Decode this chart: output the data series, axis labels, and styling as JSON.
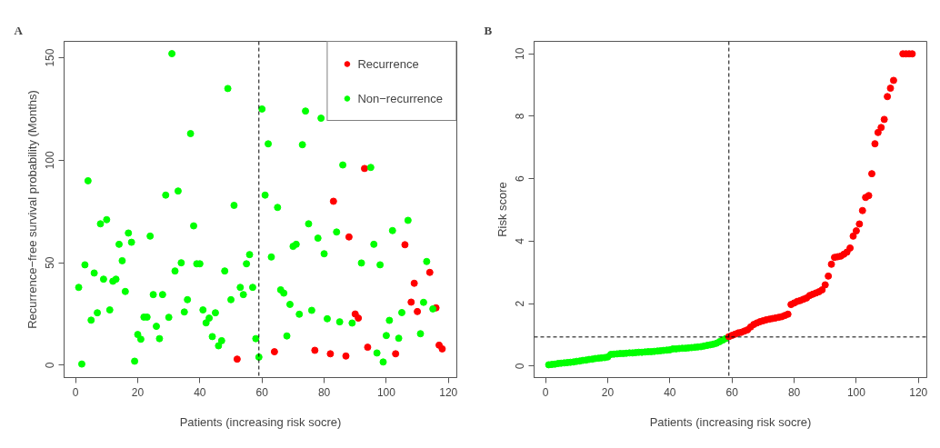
{
  "chart_data": [
    {
      "type": "scatter",
      "title": "A",
      "xlabel": "Patients (increasing risk socre)",
      "ylabel": "Recurrence−free survival probability (Months)",
      "legend": "top right",
      "marker": "circle",
      "grid": false,
      "xlim": [
        -3.7,
        122.7
      ],
      "ylim": [
        -6,
        158
      ],
      "xticks": [
        0,
        20,
        40,
        60,
        80,
        100,
        120
      ],
      "yticks": [
        0,
        50,
        100,
        150
      ],
      "ref_lines": [
        {
          "axis": "x",
          "value": 59,
          "line_style": "dashed",
          "color": "#000000"
        }
      ],
      "series": [
        {
          "name": "Recurrence",
          "color": "#ff0000",
          "x": [
            52,
            64,
            77,
            82,
            83,
            87,
            88,
            90,
            91,
            93,
            94,
            103,
            106,
            108,
            109,
            110,
            114,
            116,
            117,
            118
          ],
          "values": [
            3,
            6.6,
            7.3,
            5.6,
            80,
            4.5,
            62.6,
            25,
            23,
            96,
            8.8,
            5.6,
            58.8,
            30.8,
            40,
            26.2,
            45.3,
            28,
            9.8,
            8
          ]
        },
        {
          "name": "Non−recurrence",
          "color": "#00ff00",
          "x": [
            1,
            2,
            3,
            4,
            5,
            6,
            7,
            8,
            9,
            10,
            11,
            12,
            13,
            14,
            15,
            16,
            17,
            18,
            19,
            20,
            21,
            22,
            23,
            24,
            25,
            26,
            27,
            28,
            29,
            30,
            31,
            32,
            33,
            34,
            35,
            36,
            37,
            38,
            39,
            40,
            41,
            42,
            43,
            44,
            45,
            46,
            47,
            48,
            49,
            50,
            51,
            53,
            54,
            55,
            56,
            57,
            58,
            59,
            60,
            61,
            62,
            63,
            65,
            66,
            67,
            68,
            69,
            70,
            71,
            72,
            73,
            74,
            75,
            76,
            78,
            79,
            80,
            81,
            84,
            85,
            86,
            89,
            92,
            95,
            96,
            97,
            98,
            99,
            100,
            101,
            102,
            104,
            105,
            107,
            111,
            112,
            113,
            115
          ],
          "values": [
            38,
            0.6,
            49,
            90,
            22,
            45,
            25.6,
            69,
            42,
            71,
            27,
            41,
            42,
            59,
            51,
            36,
            64.5,
            60,
            2,
            15,
            12.7,
            23.5,
            23.5,
            63,
            34.5,
            19,
            13,
            34.5,
            83,
            23.4,
            152,
            46,
            85,
            50,
            26,
            32,
            113,
            68,
            49.5,
            49.5,
            27,
            20.7,
            23,
            14,
            25.6,
            9.5,
            12,
            46,
            135,
            32,
            78,
            38,
            34.5,
            49.5,
            54,
            38,
            13,
            4,
            125,
            83,
            108,
            52.8,
            77,
            36.8,
            35.2,
            14.3,
            29.7,
            58,
            59,
            24.9,
            107.6,
            124,
            69,
            26.8,
            62,
            120.5,
            54.4,
            22.7,
            65,
            21.2,
            97.7,
            20.6,
            49.9,
            96.5,
            59,
            6,
            49,
            1.6,
            14.5,
            21.9,
            65.7,
            13.2,
            25.7,
            70.7,
            15.4,
            30.7,
            50.6,
            27.5
          ]
        }
      ]
    },
    {
      "type": "scatter",
      "title": "B",
      "xlabel": "Patients (increasing risk socre)",
      "ylabel": "Risk score",
      "legend": false,
      "marker": "circle",
      "grid": false,
      "xlim": [
        -3.7,
        122.7
      ],
      "ylim": [
        -0.37,
        10.4
      ],
      "xticks": [
        0,
        20,
        40,
        60,
        80,
        100,
        120
      ],
      "yticks": [
        0,
        2,
        4,
        6,
        8,
        10
      ],
      "ref_lines": [
        {
          "axis": "x",
          "value": 59,
          "line_style": "dashed",
          "color": "#000000"
        },
        {
          "axis": "y",
          "value": 0.93,
          "line_style": "dashed",
          "color": "#000000"
        }
      ],
      "series": [
        {
          "color": "#00ff00",
          "x": [
            1,
            2,
            3,
            4,
            5,
            6,
            7,
            8,
            9,
            10,
            11,
            12,
            13,
            14,
            15,
            16,
            17,
            18,
            19,
            20,
            21,
            22,
            23,
            24,
            25,
            26,
            27,
            28,
            29,
            30,
            31,
            32,
            33,
            34,
            35,
            36,
            37,
            38,
            39,
            40,
            41,
            42,
            43,
            44,
            45,
            46,
            47,
            48,
            49,
            50,
            51,
            52,
            53,
            54,
            55,
            56,
            57,
            58
          ],
          "values": [
            0.04,
            0.05,
            0.06,
            0.08,
            0.09,
            0.1,
            0.11,
            0.12,
            0.13,
            0.15,
            0.16,
            0.18,
            0.19,
            0.21,
            0.22,
            0.24,
            0.25,
            0.26,
            0.27,
            0.29,
            0.37,
            0.38,
            0.39,
            0.4,
            0.4,
            0.41,
            0.42,
            0.42,
            0.43,
            0.44,
            0.44,
            0.45,
            0.46,
            0.46,
            0.47,
            0.48,
            0.49,
            0.5,
            0.51,
            0.52,
            0.55,
            0.55,
            0.56,
            0.57,
            0.57,
            0.58,
            0.59,
            0.6,
            0.61,
            0.62,
            0.64,
            0.66,
            0.68,
            0.7,
            0.73,
            0.78,
            0.83,
            0.88
          ]
        },
        {
          "color": "#ff0000",
          "x": [
            59,
            60,
            61,
            62,
            63,
            64,
            65,
            66,
            67,
            68,
            69,
            70,
            71,
            72,
            73,
            74,
            75,
            76,
            77,
            78,
            79,
            80,
            81,
            82,
            83,
            84,
            85,
            86,
            87,
            88,
            89,
            90,
            91,
            92,
            93,
            94,
            95,
            96,
            97,
            98,
            99,
            100,
            101,
            102,
            103,
            104,
            105,
            106,
            107,
            108,
            109,
            110,
            111,
            112,
            115,
            116,
            117,
            118
          ],
          "values": [
            0.94,
            0.98,
            1.02,
            1.06,
            1.08,
            1.12,
            1.16,
            1.25,
            1.33,
            1.38,
            1.42,
            1.45,
            1.48,
            1.5,
            1.52,
            1.54,
            1.56,
            1.58,
            1.62,
            1.66,
            1.97,
            2.02,
            2.07,
            2.1,
            2.14,
            2.18,
            2.26,
            2.3,
            2.34,
            2.38,
            2.44,
            2.6,
            2.88,
            3.26,
            3.48,
            3.5,
            3.52,
            3.58,
            3.65,
            3.78,
            4.16,
            4.33,
            4.55,
            4.98,
            5.4,
            5.46,
            6.16,
            7.12,
            7.48,
            7.64,
            7.9,
            8.63,
            8.9,
            9.15,
            10,
            10,
            10,
            10
          ]
        }
      ]
    }
  ]
}
